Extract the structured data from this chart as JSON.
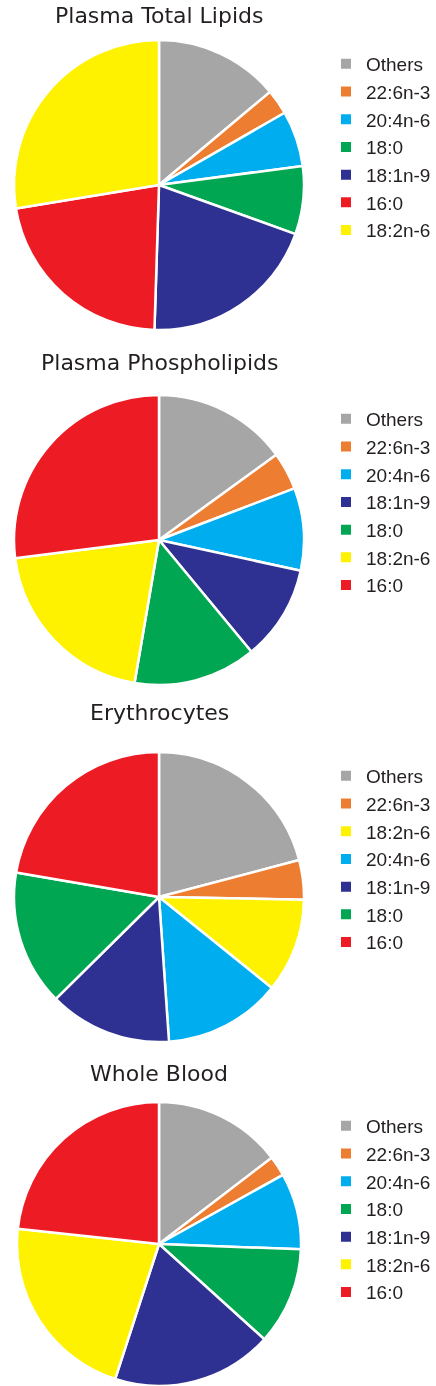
{
  "chart_data": [
    {
      "type": "pie",
      "title": "Plasma Total Lipids",
      "legend": "right",
      "categories": [
        "Others",
        "22:6n-3",
        "20:4n-6",
        "18:0",
        "18:1n-9",
        "16:0",
        "18:2n-6"
      ],
      "values": [
        13.9,
        2.8,
        6.2,
        7.6,
        20.0,
        21.9,
        27.6
      ],
      "colors": [
        "#a6a6a6",
        "#ed7d31",
        "#00aeef",
        "#00a651",
        "#2e3192",
        "#ed1c24",
        "#fff200"
      ]
    },
    {
      "type": "pie",
      "title": "Plasma Phospholipids",
      "legend": "right",
      "categories": [
        "Others",
        "22:6n-3",
        "20:4n-6",
        "18:1n-9",
        "18:0",
        "18:2n-6",
        "16:0"
      ],
      "values": [
        15.0,
        4.2,
        9.2,
        10.6,
        13.7,
        20.3,
        27.0
      ],
      "colors": [
        "#a6a6a6",
        "#ed7d31",
        "#00aeef",
        "#2e3192",
        "#00a651",
        "#fff200",
        "#ed1c24"
      ]
    },
    {
      "type": "pie",
      "title": "Erythrocytes",
      "legend": "right",
      "categories": [
        "Others",
        "22:6n-3",
        "18:2n-6",
        "20:4n-6",
        "18:1n-9",
        "18:0",
        "16:0"
      ],
      "values": [
        20.9,
        4.4,
        10.5,
        13.1,
        13.7,
        15.1,
        22.3
      ],
      "colors": [
        "#a6a6a6",
        "#ed7d31",
        "#fff200",
        "#00aeef",
        "#2e3192",
        "#00a651",
        "#ed1c24"
      ]
    },
    {
      "type": "pie",
      "title": "Whole Blood",
      "legend": "right",
      "categories": [
        "Others",
        "22:6n-3",
        "20:4n-6",
        "18:0",
        "18:1n-9",
        "18:2n-6",
        "16:0"
      ],
      "values": [
        14.6,
        2.3,
        8.7,
        11.1,
        18.3,
        21.7,
        23.3
      ],
      "colors": [
        "#a6a6a6",
        "#ed7d31",
        "#00aeef",
        "#00a651",
        "#2e3192",
        "#fff200",
        "#ed1c24"
      ]
    }
  ]
}
